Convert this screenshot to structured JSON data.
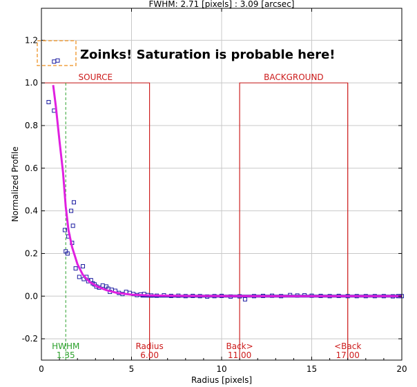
{
  "chart_data": {
    "type": "scatter",
    "title": "FWHM: 2.71 [pixels] : 3.09 [arcsec]",
    "xlabel": "Radius [pixels]",
    "ylabel": "Normalized Profile",
    "xlim": [
      0,
      20
    ],
    "ylim": [
      -0.3,
      1.35
    ],
    "xticks": [
      0,
      5,
      10,
      15,
      20
    ],
    "yticks": [
      -0.2,
      0.0,
      0.2,
      0.4,
      0.6,
      0.8,
      1.0,
      1.2
    ],
    "ytick_labels": [
      "-0.2",
      "0.0",
      "0.2",
      "0.4",
      "0.6",
      "0.8",
      "1.0",
      "1.2"
    ],
    "grid": true,
    "annotation": "Zoinks! Saturation is probable here!",
    "saturated_points": [
      [
        0.7,
        1.1
      ],
      [
        0.9,
        1.105
      ]
    ],
    "series": [
      {
        "kind": "points",
        "color": "#1a1aa0",
        "points": [
          [
            0.4,
            0.91
          ],
          [
            0.7,
            0.87
          ],
          [
            1.3,
            0.31
          ],
          [
            1.35,
            0.21
          ],
          [
            1.45,
            0.2
          ],
          [
            1.5,
            0.28
          ],
          [
            1.65,
            0.4
          ],
          [
            1.75,
            0.33
          ],
          [
            1.8,
            0.44
          ],
          [
            1.7,
            0.25
          ],
          [
            1.9,
            0.13
          ],
          [
            2.1,
            0.09
          ],
          [
            2.3,
            0.14
          ],
          [
            2.35,
            0.08
          ],
          [
            2.5,
            0.09
          ],
          [
            2.6,
            0.07
          ],
          [
            2.75,
            0.075
          ],
          [
            2.85,
            0.06
          ],
          [
            2.95,
            0.055
          ],
          [
            3.05,
            0.045
          ],
          [
            3.2,
            0.04
          ],
          [
            3.4,
            0.05
          ],
          [
            3.6,
            0.045
          ],
          [
            3.7,
            0.035
          ],
          [
            3.8,
            0.02
          ],
          [
            3.9,
            0.03
          ],
          [
            4.1,
            0.025
          ],
          [
            4.3,
            0.015
          ],
          [
            4.5,
            0.01
          ],
          [
            4.7,
            0.02
          ],
          [
            4.9,
            0.015
          ],
          [
            5.1,
            0.01
          ],
          [
            5.3,
            0.005
          ],
          [
            5.5,
            0.008
          ],
          [
            5.7,
            0.01
          ],
          [
            5.9,
            0.005
          ],
          [
            6.1,
            0.003
          ],
          [
            6.4,
            0.002
          ],
          [
            6.8,
            0.004
          ],
          [
            7.2,
            0.001
          ],
          [
            7.6,
            0.002
          ],
          [
            8.0,
            0.0
          ],
          [
            8.4,
            0.001
          ],
          [
            8.8,
            0.0
          ],
          [
            9.2,
            -0.002
          ],
          [
            9.6,
            0.0
          ],
          [
            10.0,
            0.001
          ],
          [
            10.5,
            -0.002
          ],
          [
            11.0,
            -0.001
          ],
          [
            11.3,
            -0.015
          ],
          [
            11.8,
            0.0
          ],
          [
            12.3,
            0.001
          ],
          [
            12.8,
            0.002
          ],
          [
            13.3,
            0.0
          ],
          [
            13.8,
            0.005
          ],
          [
            14.2,
            0.003
          ],
          [
            14.6,
            0.004
          ],
          [
            15.0,
            0.002
          ],
          [
            15.5,
            0.001
          ],
          [
            16.0,
            0.0
          ],
          [
            16.5,
            0.001
          ],
          [
            17.0,
            0.0
          ],
          [
            17.5,
            0.0
          ],
          [
            18.0,
            0.0
          ],
          [
            18.5,
            0.0
          ],
          [
            19.0,
            0.0
          ],
          [
            19.5,
            -0.001
          ],
          [
            19.8,
            0.0
          ],
          [
            20.0,
            0.0
          ]
        ]
      },
      {
        "kind": "fit",
        "color": "#e020e0",
        "x": [
          0.65,
          0.8,
          1.0,
          1.2,
          1.35,
          1.5,
          1.7,
          2.0,
          2.3,
          2.7,
          3.1,
          3.6,
          4.2,
          5.0,
          6.0,
          8.0,
          12.0,
          16.0,
          20.0
        ],
        "y": [
          0.99,
          0.89,
          0.73,
          0.58,
          0.42,
          0.31,
          0.23,
          0.15,
          0.1,
          0.065,
          0.045,
          0.028,
          0.015,
          0.007,
          0.003,
          0.001,
          0.0,
          0.0,
          0.0
        ]
      }
    ],
    "markers": [
      {
        "label": "HWHM",
        "value_label": "1.35",
        "x": 1.35,
        "color": "#2aa02a",
        "style": "dashed"
      },
      {
        "label": "Radius",
        "value_label": "6.00",
        "x": 6.0,
        "color": "#cc1a1a",
        "style": "solid"
      },
      {
        "label": "Back>",
        "value_label": "11.00",
        "x": 11.0,
        "color": "#cc1a1a",
        "style": "solid"
      },
      {
        "label": "<Back",
        "value_label": "17.00",
        "x": 17.0,
        "color": "#cc1a1a",
        "style": "solid"
      }
    ],
    "regions": [
      {
        "label": "SOURCE",
        "x0": 0.0,
        "x1": 6.0,
        "top": 1.0,
        "color": "#cc1a1a"
      },
      {
        "label": "BACKGROUND",
        "x0": 11.0,
        "x1": 17.0,
        "top": 1.0,
        "color": "#cc1a1a"
      }
    ]
  }
}
